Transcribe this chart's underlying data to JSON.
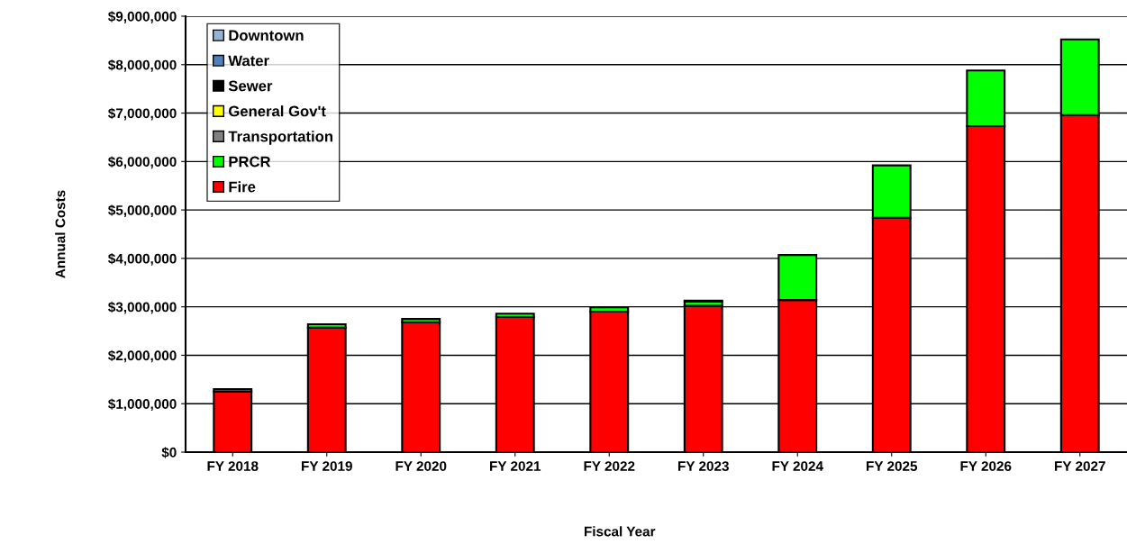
{
  "chart_data": {
    "type": "bar",
    "stacked": true,
    "xlabel": "Fiscal Year",
    "ylabel": "Annual Costs",
    "categories": [
      "FY 2018",
      "FY 2019",
      "FY 2020",
      "FY 2021",
      "FY 2022",
      "FY 2023",
      "FY 2024",
      "FY 2025",
      "FY 2026",
      "FY 2027"
    ],
    "series": [
      {
        "name": "Fire",
        "color": "#ff0000",
        "values": [
          1250000,
          2570000,
          2680000,
          2790000,
          2900000,
          3020000,
          3140000,
          4840000,
          6730000,
          6960000
        ]
      },
      {
        "name": "PRCR",
        "color": "#00ff00",
        "values": [
          50000,
          70000,
          70000,
          70000,
          90000,
          90000,
          930000,
          1080000,
          1150000,
          1560000
        ]
      },
      {
        "name": "Transportation",
        "color": "#808080",
        "values": [
          0,
          0,
          0,
          0,
          0,
          0,
          0,
          0,
          0,
          0
        ]
      },
      {
        "name": "General Gov't",
        "color": "#ffff00",
        "values": [
          0,
          0,
          0,
          0,
          0,
          0,
          0,
          0,
          0,
          0
        ]
      },
      {
        "name": "Sewer",
        "color": "#000000",
        "values": [
          0,
          0,
          0,
          0,
          0,
          20000,
          0,
          0,
          0,
          0
        ]
      },
      {
        "name": "Water",
        "color": "#4f81bd",
        "values": [
          0,
          0,
          0,
          0,
          0,
          0,
          0,
          0,
          0,
          0
        ]
      },
      {
        "name": "Downtown",
        "color": "#95b3d7",
        "values": [
          0,
          0,
          0,
          0,
          0,
          0,
          0,
          0,
          0,
          0
        ]
      }
    ],
    "ylim": [
      0,
      9000000
    ],
    "yticks": [
      {
        "value": 0,
        "label": "$0"
      },
      {
        "value": 1000000,
        "label": "$1,000,000"
      },
      {
        "value": 2000000,
        "label": "$2,000,000"
      },
      {
        "value": 3000000,
        "label": "$3,000,000"
      },
      {
        "value": 4000000,
        "label": "$4,000,000"
      },
      {
        "value": 5000000,
        "label": "$5,000,000"
      },
      {
        "value": 6000000,
        "label": "$6,000,000"
      },
      {
        "value": 7000000,
        "label": "$7,000,000"
      },
      {
        "value": 8000000,
        "label": "$8,000,000"
      },
      {
        "value": 9000000,
        "label": "$9,000,000"
      }
    ],
    "grid": "y",
    "legend": "top left"
  }
}
